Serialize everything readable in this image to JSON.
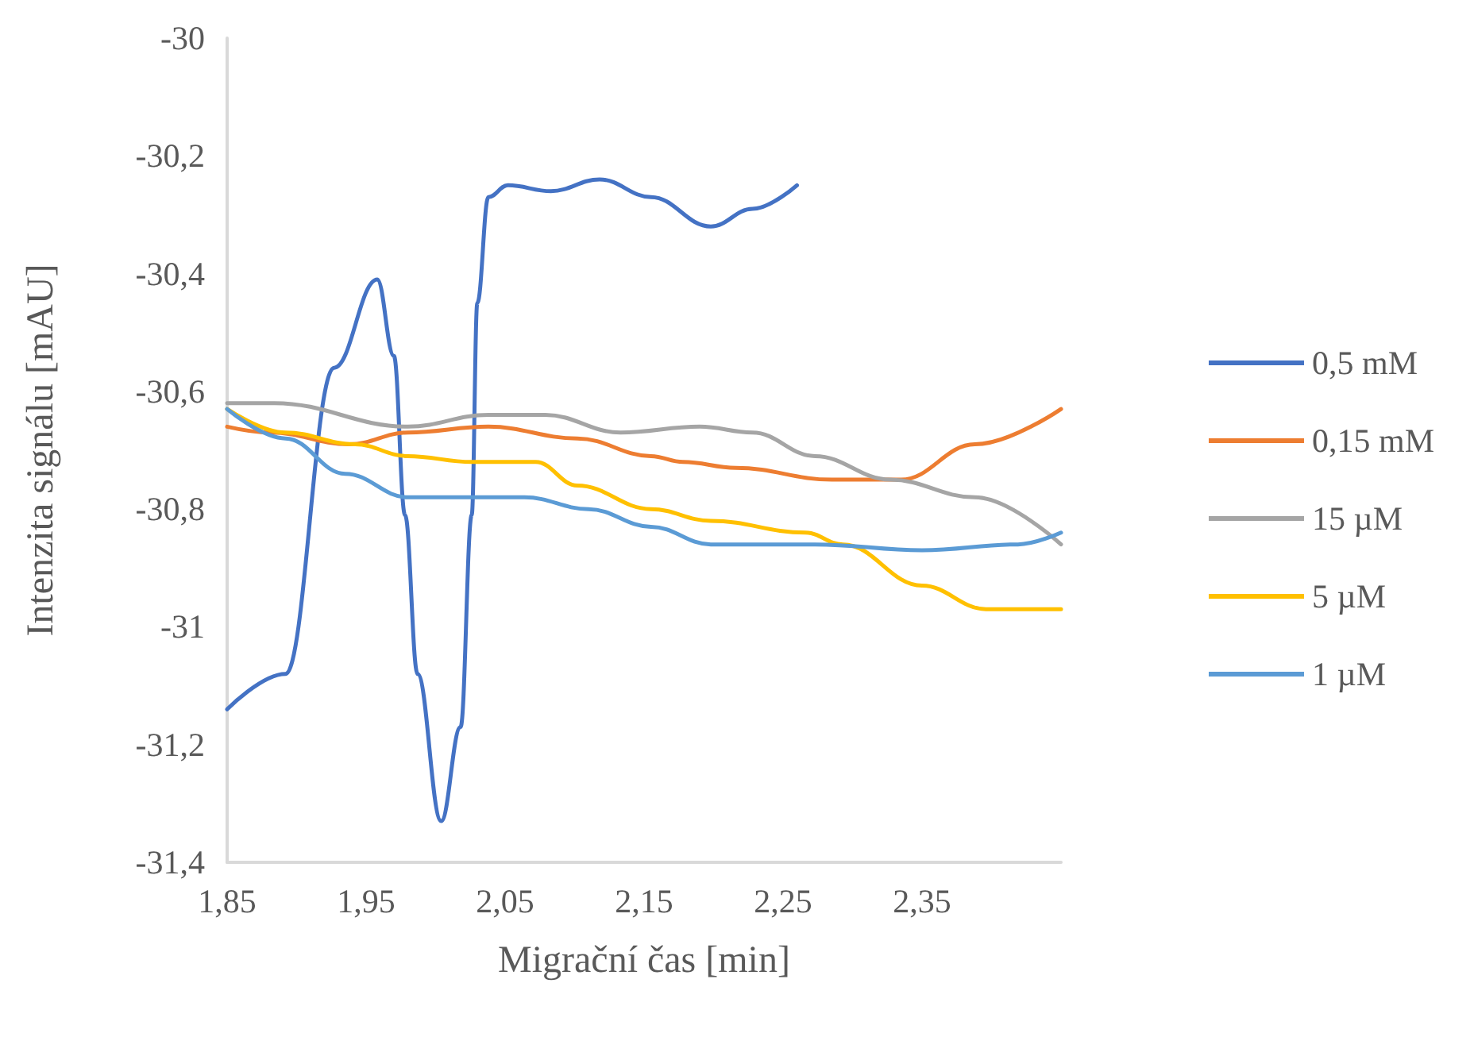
{
  "chart_data": {
    "type": "line",
    "xlabel": "Migrační čas [min]",
    "ylabel": "Intenzita signálu [mAU]",
    "xlim": [
      1.85,
      2.45
    ],
    "ylim": [
      -31.4,
      -30
    ],
    "xticks": [
      {
        "value": 1.85,
        "label": "1,85"
      },
      {
        "value": 1.95,
        "label": "1,95"
      },
      {
        "value": 2.05,
        "label": "2,05"
      },
      {
        "value": 2.15,
        "label": "2,15"
      },
      {
        "value": 2.25,
        "label": "2,25"
      },
      {
        "value": 2.35,
        "label": "2,35"
      }
    ],
    "yticks": [
      {
        "value": -31.4,
        "label": "-31,4"
      },
      {
        "value": -31.2,
        "label": "-31,2"
      },
      {
        "value": -31,
        "label": "-31"
      },
      {
        "value": -30.8,
        "label": "-30,8"
      },
      {
        "value": -30.6,
        "label": "-30,6"
      },
      {
        "value": -30.4,
        "label": "-30,4"
      },
      {
        "value": -30.2,
        "label": "-30,2"
      },
      {
        "value": -30,
        "label": "-30"
      }
    ],
    "grid": false,
    "legend": "right",
    "marker": "none",
    "line_style": "solid",
    "series": [
      {
        "name": "0,5 mM",
        "color": "#4472c4",
        "x": [
          1.85,
          1.892,
          1.927,
          1.958,
          1.97,
          1.978,
          1.987,
          2.004,
          2.018,
          2.026,
          2.03,
          2.038,
          2.052,
          2.083,
          2.118,
          2.155,
          2.198,
          2.228,
          2.26
        ],
        "values": [
          -31.14,
          -31.08,
          -30.56,
          -30.41,
          -30.54,
          -30.81,
          -31.08,
          -31.33,
          -31.17,
          -30.81,
          -30.45,
          -30.27,
          -30.25,
          -30.26,
          -30.24,
          -30.27,
          -30.32,
          -30.29,
          -30.25
        ]
      },
      {
        "name": "0,15 mM",
        "color": "#ed7d31",
        "x": [
          1.85,
          1.881,
          1.938,
          1.98,
          2.038,
          2.102,
          2.155,
          2.178,
          2.216,
          2.285,
          2.335,
          2.388,
          2.45
        ],
        "values": [
          -30.66,
          -30.67,
          -30.69,
          -30.67,
          -30.66,
          -30.68,
          -30.71,
          -30.72,
          -30.73,
          -30.75,
          -30.75,
          -30.69,
          -30.63
        ]
      },
      {
        "name": "15 µM",
        "color": "#a5a5a5",
        "x": [
          1.85,
          1.884,
          1.98,
          2.038,
          2.079,
          2.133,
          2.19,
          2.228,
          2.273,
          2.327,
          2.388,
          2.45
        ],
        "values": [
          -30.62,
          -30.62,
          -30.66,
          -30.64,
          -30.64,
          -30.67,
          -30.66,
          -30.67,
          -30.71,
          -30.75,
          -30.78,
          -30.86
        ]
      },
      {
        "name": "5 µM",
        "color": "#ffc000",
        "x": [
          1.85,
          1.892,
          1.942,
          1.98,
          2.026,
          2.072,
          2.102,
          2.155,
          2.198,
          2.266,
          2.293,
          2.35,
          2.396,
          2.45
        ],
        "values": [
          -30.63,
          -30.67,
          -30.69,
          -30.71,
          -30.72,
          -30.72,
          -30.76,
          -30.8,
          -30.82,
          -30.84,
          -30.86,
          -30.93,
          -30.97,
          -30.97
        ]
      },
      {
        "name": "1 µM",
        "color": "#5b9bd5",
        "x": [
          1.85,
          1.892,
          1.935,
          1.98,
          2.026,
          2.064,
          2.11,
          2.155,
          2.198,
          2.273,
          2.35,
          2.419,
          2.45
        ],
        "values": [
          -30.63,
          -30.68,
          -30.74,
          -30.78,
          -30.78,
          -30.78,
          -30.8,
          -30.83,
          -30.86,
          -30.86,
          -30.87,
          -30.86,
          -30.84
        ]
      }
    ]
  }
}
